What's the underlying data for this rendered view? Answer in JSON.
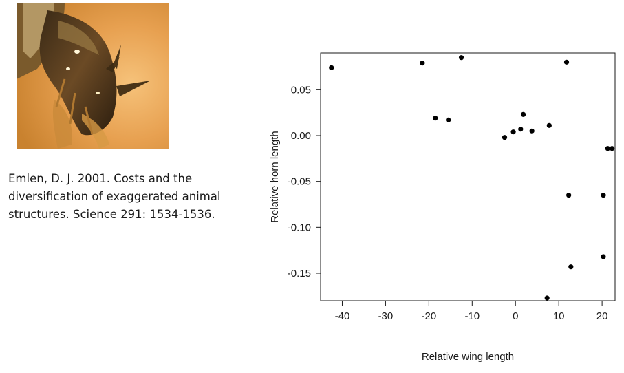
{
  "citation": {
    "lines": [
      "Emlen, D. J. 2001. Costs and the",
      "diversification of exaggerated animal",
      "structures. Science 291: 1534-1536."
    ]
  },
  "photo": {
    "icon": "beetle-horn-photo"
  },
  "chart_data": {
    "type": "scatter",
    "xlabel": "Relative wing length",
    "ylabel": "Relative horn length",
    "xlim": [
      -45,
      23
    ],
    "ylim": [
      -0.18,
      0.09
    ],
    "x_ticks": [
      -40,
      -30,
      -20,
      -10,
      0,
      10,
      20
    ],
    "x_tick_labels": [
      "-40",
      "-30",
      "-20",
      "-10",
      "0",
      "10",
      "20"
    ],
    "y_ticks": [
      0.05,
      0.0,
      -0.05,
      -0.1,
      -0.15
    ],
    "y_tick_labels": [
      "0.05",
      "0.00",
      "-0.05",
      "-0.10",
      "-0.15"
    ],
    "grid": false,
    "points": [
      {
        "x": -42.5,
        "y": 0.074
      },
      {
        "x": -21.5,
        "y": 0.079
      },
      {
        "x": -12.5,
        "y": 0.085
      },
      {
        "x": -18.5,
        "y": 0.019
      },
      {
        "x": -15.5,
        "y": 0.017
      },
      {
        "x": -2.5,
        "y": -0.002
      },
      {
        "x": -0.5,
        "y": 0.004
      },
      {
        "x": 1.2,
        "y": 0.007
      },
      {
        "x": 1.8,
        "y": 0.023
      },
      {
        "x": 3.8,
        "y": 0.005
      },
      {
        "x": 7.8,
        "y": 0.011
      },
      {
        "x": 11.8,
        "y": 0.08
      },
      {
        "x": 12.3,
        "y": -0.065
      },
      {
        "x": 12.8,
        "y": -0.143
      },
      {
        "x": 7.3,
        "y": -0.177
      },
      {
        "x": 20.3,
        "y": -0.065
      },
      {
        "x": 20.3,
        "y": -0.132
      },
      {
        "x": 21.3,
        "y": -0.014
      },
      {
        "x": 22.3,
        "y": -0.014
      }
    ]
  }
}
